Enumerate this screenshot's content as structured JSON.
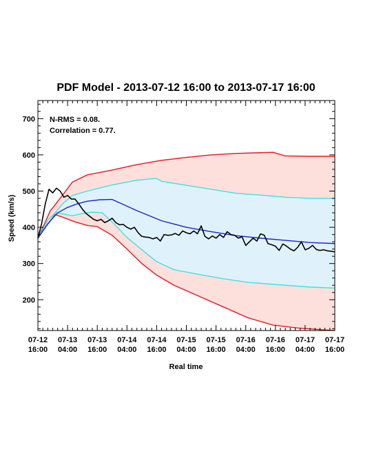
{
  "chart_data": {
    "type": "line",
    "title": "PDF Model - 2013-07-12 16:00 to 2013-07-17 16:00",
    "xlabel": "Real time",
    "ylabel": "Speed (km/s)",
    "xlim_hours": [
      0,
      120
    ],
    "ylim": [
      115,
      750
    ],
    "y_ticks": [
      200,
      300,
      400,
      500,
      600,
      700
    ],
    "x_ticks": [
      {
        "hour": 0,
        "line1": "07-12",
        "line2": "16:00"
      },
      {
        "hour": 12,
        "line1": "07-13",
        "line2": "04:00"
      },
      {
        "hour": 24,
        "line1": "07-13",
        "line2": "16:00"
      },
      {
        "hour": 36,
        "line1": "07-14",
        "line2": "04:00"
      },
      {
        "hour": 48,
        "line1": "07-14",
        "line2": "16:00"
      },
      {
        "hour": 60,
        "line1": "07-15",
        "line2": "04:00"
      },
      {
        "hour": 72,
        "line1": "07-15",
        "line2": "16:00"
      },
      {
        "hour": 84,
        "line1": "07-16",
        "line2": "04:00"
      },
      {
        "hour": 96,
        "line1": "07-16",
        "line2": "16:00"
      },
      {
        "hour": 108,
        "line1": "07-17",
        "line2": "04:00"
      },
      {
        "hour": 120,
        "line1": "07-17",
        "line2": "16:00"
      }
    ],
    "stats": {
      "nrms": "N-RMS = 0.08.",
      "correlation": "Correlation = 0.77."
    },
    "colors": {
      "outer_band_fill": "#fde0dc",
      "inner_band_fill": "#dff2fb",
      "outer_line": "#e8141c",
      "inner_line": "#3fe0e4",
      "median_line": "#1a22cc",
      "observed_line": "#000000"
    },
    "series": [
      {
        "key": "upper_outer",
        "x": [
          0,
          5,
          9,
          14,
          20,
          24,
          30,
          40,
          50,
          60,
          70,
          80,
          90,
          95,
          100,
          110,
          120
        ],
        "values": [
          370,
          445,
          480,
          525,
          545,
          550,
          558,
          573,
          585,
          593,
          600,
          604,
          606,
          607,
          597,
          596,
          596
        ]
      },
      {
        "key": "upper_inner",
        "x": [
          0,
          4,
          7,
          10,
          14,
          20,
          30,
          40,
          48,
          50,
          60,
          70,
          80,
          90,
          100,
          110,
          120
        ],
        "values": [
          370,
          420,
          440,
          465,
          488,
          500,
          517,
          530,
          535,
          527,
          516,
          505,
          494,
          489,
          483,
          480,
          480
        ]
      },
      {
        "key": "median",
        "x": [
          0,
          4,
          8,
          12,
          16,
          20,
          25,
          30,
          40,
          50,
          60,
          70,
          80,
          90,
          100,
          110,
          120
        ],
        "values": [
          370,
          410,
          440,
          455,
          465,
          472,
          476,
          477,
          446,
          418,
          400,
          388,
          377,
          370,
          364,
          358,
          355
        ]
      },
      {
        "key": "lower_inner",
        "x": [
          0,
          4,
          7,
          10,
          14,
          18,
          22,
          26,
          30,
          36,
          42,
          48,
          55,
          65,
          75,
          85,
          100,
          110,
          120
        ],
        "values": [
          370,
          408,
          440,
          437,
          432,
          438,
          442,
          440,
          415,
          372,
          338,
          305,
          283,
          270,
          258,
          248,
          240,
          235,
          232
        ]
      },
      {
        "key": "lower_outer",
        "x": [
          0,
          4,
          7,
          10,
          15,
          20,
          24,
          30,
          36,
          42,
          48,
          55,
          65,
          75,
          85,
          95,
          105,
          115,
          120
        ],
        "values": [
          370,
          408,
          435,
          428,
          415,
          405,
          402,
          378,
          340,
          300,
          268,
          240,
          210,
          180,
          150,
          130,
          122,
          117,
          115
        ]
      },
      {
        "key": "observed",
        "x": [
          0,
          1.5,
          3,
          4.5,
          6,
          7.5,
          9,
          10.5,
          12,
          13.5,
          15,
          16.5,
          18,
          19.5,
          21,
          22.5,
          24,
          25.5,
          27,
          28.5,
          30,
          31.5,
          33,
          34.5,
          36,
          37.5,
          39,
          40.5,
          42,
          43.5,
          45,
          46.5,
          48,
          49.5,
          51,
          52.5,
          54,
          55.5,
          57,
          58.5,
          60,
          61.5,
          63,
          64.5,
          66,
          67.5,
          69,
          70.5,
          72,
          73.5,
          75,
          76.5,
          78,
          79.5,
          81,
          82.5,
          84,
          85.5,
          87,
          88.5,
          90,
          91.5,
          93,
          94.5,
          96,
          97.5,
          99,
          100.5,
          102,
          103.5,
          105,
          106.5,
          108,
          109.5,
          111,
          112.5,
          114,
          115.5,
          117,
          118.5,
          120
        ],
        "values": [
          370,
          410,
          465,
          505,
          495,
          508,
          500,
          483,
          488,
          478,
          478,
          465,
          450,
          438,
          430,
          422,
          418,
          422,
          413,
          418,
          425,
          413,
          407,
          408,
          400,
          395,
          400,
          385,
          375,
          373,
          372,
          368,
          372,
          362,
          380,
          378,
          379,
          383,
          378,
          390,
          385,
          382,
          390,
          382,
          404,
          375,
          368,
          376,
          370,
          380,
          372,
          388,
          380,
          378,
          370,
          374,
          350,
          360,
          370,
          362,
          382,
          378,
          355,
          352,
          348,
          336,
          354,
          348,
          340,
          335,
          345,
          360,
          338,
          342,
          350,
          339,
          336,
          338,
          335,
          334,
          332
        ]
      }
    ]
  }
}
